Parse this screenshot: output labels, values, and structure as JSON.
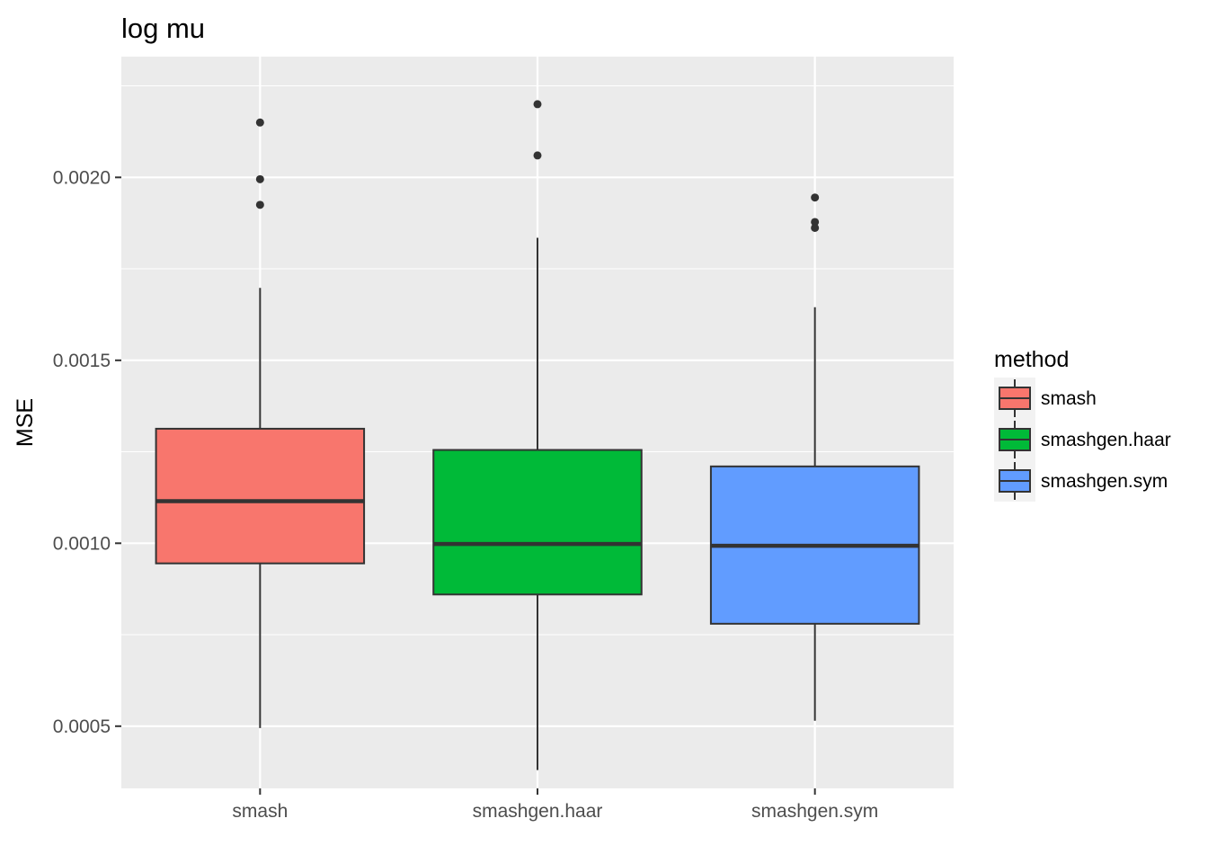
{
  "chart_data": {
    "type": "boxplot",
    "title": "log mu",
    "xlabel": "",
    "ylabel": "MSE",
    "ylim": [
      0.00033,
      0.00233
    ],
    "yticks": [
      0.0005,
      0.001,
      0.0015,
      0.002
    ],
    "ytick_labels": [
      "0.0005",
      "0.0010",
      "0.0015",
      "0.0020"
    ],
    "grid": true,
    "categories": [
      "smash",
      "smashgen.haar",
      "smashgen.sym"
    ],
    "legend": {
      "title": "method",
      "position": "right",
      "entries": [
        "smash",
        "smashgen.haar",
        "smashgen.sym"
      ]
    },
    "series": [
      {
        "name": "smash",
        "color": "#F8766D",
        "whisker_low": 0.000495,
        "q1": 0.000945,
        "median": 0.001115,
        "q3": 0.001313,
        "whisker_high": 0.001698,
        "outliers": [
          0.00215,
          0.001995,
          0.001925
        ]
      },
      {
        "name": "smashgen.haar",
        "color": "#00BA38",
        "whisker_low": 0.00038,
        "q1": 0.00086,
        "median": 0.000998,
        "q3": 0.001255,
        "whisker_high": 0.001835,
        "outliers": [
          0.0022,
          0.00206
        ]
      },
      {
        "name": "smashgen.sym",
        "color": "#619CFF",
        "whisker_low": 0.000515,
        "q1": 0.00078,
        "median": 0.000993,
        "q3": 0.00121,
        "whisker_high": 0.001645,
        "outliers": [
          0.001945,
          0.001878,
          0.001862
        ]
      }
    ]
  }
}
